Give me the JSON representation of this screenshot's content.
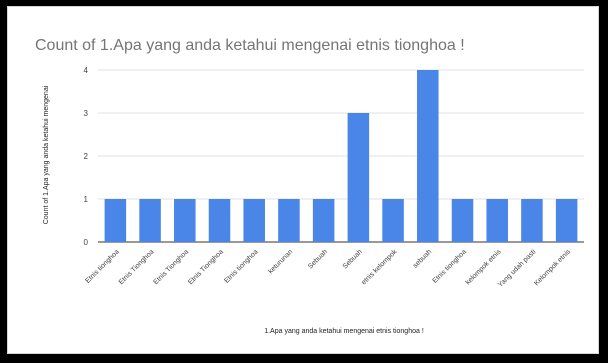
{
  "chart_data": {
    "type": "bar",
    "title": "Count of 1.Apa yang anda ketahui mengenai etnis tionghoa !",
    "xlabel": "1.Apa yang anda ketahui mengenai etnis tionghoa !",
    "ylabel": "Count of 1.Apa yang anda ketahui mengenai",
    "ylim": [
      0,
      4
    ],
    "yticks": [
      0,
      1,
      2,
      3,
      4
    ],
    "grid": true,
    "color": "#4a86e8",
    "categories": [
      "Etnis tionghoa",
      "Etnis Tionghoa",
      "Etnis Tionghoa",
      "Etnis Tionghoa",
      "Etnis tionghoa",
      "keturunan",
      "Sebuah",
      "Sebuah",
      "etnis kelompok",
      "sebuah",
      "Etnis tionghoa",
      "kelompok etnis",
      "Yang udah pasti",
      "Kelompok etnis"
    ],
    "values": [
      1,
      1,
      1,
      1,
      1,
      1,
      1,
      3,
      1,
      4,
      1,
      1,
      1,
      1
    ]
  }
}
